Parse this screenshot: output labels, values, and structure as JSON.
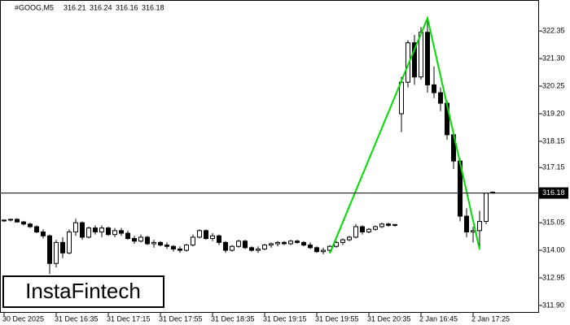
{
  "chart_data": {
    "type": "candlestick",
    "symbol": "#GOOG,M5",
    "categories": [
      "30 Dec 2025",
      null,
      null,
      null,
      null,
      null,
      null,
      null,
      "31 Dec 16:35",
      null,
      null,
      null,
      null,
      null,
      null,
      null,
      "31 Dec 17:15",
      null,
      null,
      null,
      null,
      null,
      null,
      null,
      "31 Dec 17:55",
      null,
      null,
      null,
      null,
      null,
      null,
      null,
      "31 Dec 18:35",
      null,
      null,
      null,
      null,
      null,
      null,
      null,
      "31 Dec 19:15",
      null,
      null,
      null,
      null,
      null,
      null,
      null,
      "31 Dec 19:55",
      null,
      null,
      null,
      null,
      null,
      null,
      null,
      "31 Dec 20:35",
      null,
      null,
      null,
      null,
      null,
      null,
      null,
      "2 Jan 16:45",
      null,
      null,
      null,
      null,
      null,
      null,
      null,
      "2 Jan 17:25",
      null,
      null,
      null
    ],
    "open": [
      315.12,
      315.15,
      315.18,
      315.08,
      315.0,
      314.9,
      314.7,
      314.55,
      313.5,
      314.3,
      313.9,
      314.7,
      315.05,
      314.5,
      314.85,
      314.7,
      314.85,
      314.6,
      314.75,
      314.65,
      314.45,
      314.35,
      314.5,
      314.25,
      314.3,
      314.2,
      314.15,
      314.05,
      314.0,
      314.2,
      314.5,
      314.75,
      314.45,
      314.55,
      314.3,
      314.0,
      314.15,
      314.35,
      314.1,
      314.0,
      314.05,
      314.2,
      314.25,
      314.3,
      314.25,
      314.35,
      314.3,
      314.2,
      314.1,
      313.95,
      314.0,
      314.15,
      314.3,
      314.4,
      314.5,
      314.9,
      314.7,
      314.8,
      314.9,
      315.0,
      314.95,
      319.2,
      320.4,
      321.9,
      320.6,
      322.3,
      320.3,
      320.0,
      319.6,
      318.4,
      317.4,
      315.3,
      314.7,
      314.75,
      315.1,
      316.21
    ],
    "high": [
      315.18,
      315.2,
      315.22,
      315.12,
      315.05,
      314.95,
      314.8,
      314.6,
      314.4,
      314.5,
      314.8,
      315.2,
      315.1,
      314.9,
      314.95,
      314.95,
      314.9,
      314.85,
      314.85,
      314.75,
      314.55,
      314.6,
      314.55,
      314.4,
      314.35,
      314.3,
      314.2,
      314.15,
      314.25,
      314.6,
      314.8,
      314.8,
      314.65,
      314.6,
      314.35,
      314.2,
      314.4,
      314.4,
      314.15,
      314.15,
      314.25,
      314.3,
      314.35,
      314.35,
      314.4,
      314.4,
      314.35,
      314.3,
      314.15,
      314.1,
      314.2,
      314.35,
      314.45,
      314.55,
      315.0,
      314.95,
      314.85,
      314.95,
      315.05,
      315.05,
      315.0,
      320.6,
      322.0,
      322.2,
      322.5,
      322.84,
      321.0,
      320.2,
      319.7,
      318.5,
      317.5,
      315.6,
      314.9,
      315.5,
      316.2,
      316.24
    ],
    "low": [
      315.08,
      315.1,
      315.05,
      314.95,
      314.85,
      314.65,
      314.45,
      313.1,
      313.35,
      313.7,
      313.85,
      314.55,
      314.4,
      314.45,
      314.6,
      314.5,
      314.55,
      314.5,
      314.55,
      314.4,
      314.25,
      314.3,
      314.2,
      314.1,
      314.15,
      314.05,
      313.95,
      313.9,
      313.95,
      314.15,
      314.45,
      314.4,
      314.35,
      314.2,
      313.9,
      313.95,
      314.1,
      314.05,
      313.95,
      313.9,
      314.0,
      314.1,
      314.15,
      314.2,
      314.2,
      314.25,
      314.15,
      314.05,
      313.9,
      313.85,
      313.9,
      314.1,
      314.2,
      314.35,
      314.45,
      314.6,
      314.65,
      314.75,
      314.85,
      314.9,
      314.9,
      318.5,
      320.2,
      320.3,
      320.5,
      320.0,
      319.8,
      319.3,
      318.2,
      317.1,
      315.1,
      314.5,
      314.3,
      314.03,
      315.0,
      316.16
    ],
    "close": [
      315.15,
      315.18,
      315.08,
      315.0,
      314.9,
      314.7,
      314.55,
      313.5,
      314.3,
      313.9,
      314.7,
      315.05,
      314.5,
      314.85,
      314.7,
      314.85,
      314.6,
      314.75,
      314.65,
      314.45,
      314.35,
      314.5,
      314.25,
      314.3,
      314.2,
      314.15,
      314.05,
      314.0,
      314.2,
      314.5,
      314.75,
      314.45,
      314.55,
      314.3,
      314.0,
      314.15,
      314.35,
      314.1,
      314.0,
      314.05,
      314.2,
      314.25,
      314.3,
      314.25,
      314.35,
      314.3,
      314.2,
      314.1,
      313.95,
      314.0,
      314.15,
      314.3,
      314.4,
      314.5,
      314.9,
      314.7,
      314.8,
      314.9,
      315.0,
      314.95,
      314.98,
      320.4,
      321.9,
      320.6,
      322.3,
      320.3,
      320.0,
      319.6,
      318.4,
      317.4,
      315.3,
      314.7,
      314.75,
      315.1,
      316.18,
      316.18
    ],
    "pattern": {
      "color": "#00dd00",
      "x": [
        50,
        65,
        73
      ],
      "values": [
        313.88,
        322.84,
        314.03
      ]
    },
    "ylim": [
      311.62,
      323.53
    ],
    "yticks": [
      {
        "value": 311.9,
        "label": "311.90"
      },
      312.95,
      {
        "value": 314.0,
        "label": "314.00"
      },
      315.05,
      317.15,
      318.15,
      {
        "value": 319.2,
        "label": "319.20"
      },
      320.25,
      {
        "value": 321.3,
        "label": "321.30"
      },
      322.35
    ]
  },
  "logo": "InstaFintech"
}
